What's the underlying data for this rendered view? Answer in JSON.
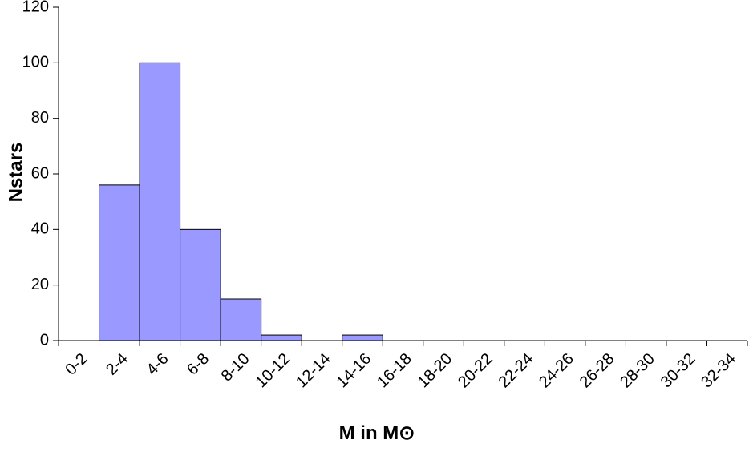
{
  "chart_data": {
    "type": "bar",
    "x_label": "M in M⊙",
    "y_label": "Nstars",
    "categories": [
      "0-2",
      "2-4",
      "4-6",
      "6-8",
      "8-10",
      "10-12",
      "12-14",
      "14-16",
      "16-18",
      "18-20",
      "20-22",
      "22-24",
      "24-26",
      "26-28",
      "28-30",
      "30-32",
      "32-34"
    ],
    "values": [
      0,
      56,
      100,
      40,
      15,
      2,
      0,
      2,
      0,
      0,
      0,
      0,
      0,
      0,
      0,
      0,
      0
    ],
    "color": "#9999ff",
    "ylim": [
      0,
      120
    ],
    "yticks": [
      0,
      20,
      40,
      60,
      80,
      100,
      120
    ],
    "grid": false
  }
}
